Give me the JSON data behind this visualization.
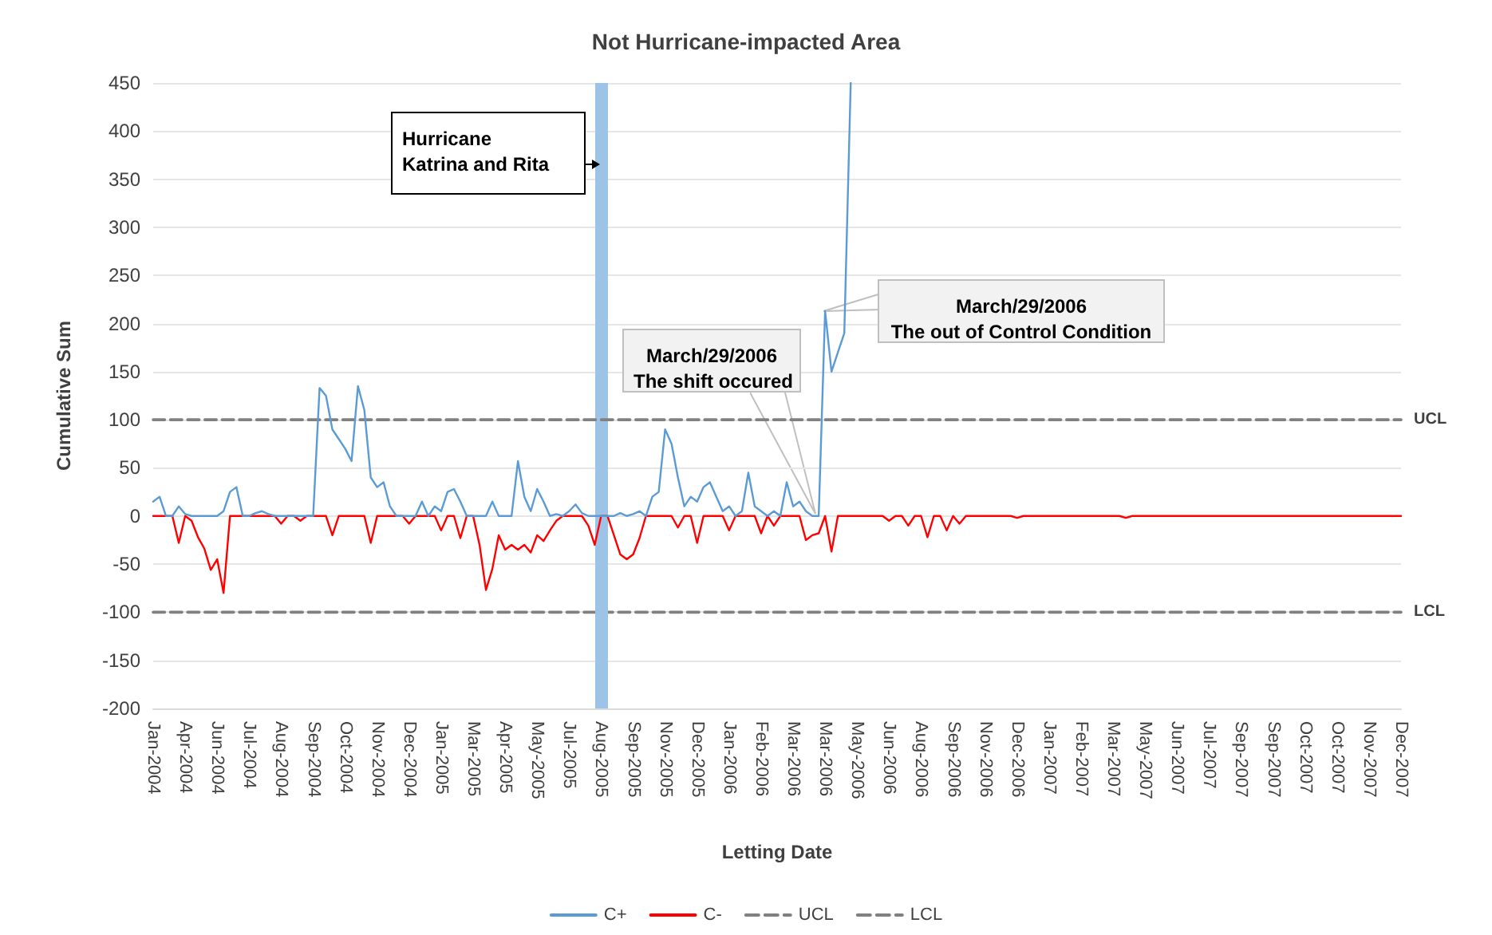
{
  "chart_data": {
    "type": "line",
    "title": "Not Hurricane-impacted Area",
    "xlabel": "Letting Date",
    "ylabel": "Cumulative Sum",
    "categories": [
      "Jan-2004",
      null,
      null,
      null,
      null,
      "Apr-2004",
      null,
      null,
      null,
      null,
      "Jun-2004",
      null,
      null,
      null,
      null,
      "Jul-2004",
      null,
      null,
      null,
      null,
      "Aug-2004",
      null,
      null,
      null,
      null,
      "Sep-2004",
      null,
      null,
      null,
      null,
      "Oct-2004",
      null,
      null,
      null,
      null,
      "Nov-2004",
      null,
      null,
      null,
      null,
      "Dec-2004",
      null,
      null,
      null,
      null,
      "Jan-2005",
      null,
      null,
      null,
      null,
      "Mar-2005",
      null,
      null,
      null,
      null,
      "Apr-2005",
      null,
      null,
      null,
      null,
      "May-2005",
      null,
      null,
      null,
      null,
      "Jul-2005",
      null,
      null,
      null,
      null,
      "Aug-2005",
      null,
      null,
      null,
      null,
      "Sep-2005",
      null,
      null,
      null,
      null,
      "Nov-2005",
      null,
      null,
      null,
      null,
      "Dec-2005",
      null,
      null,
      null,
      null,
      "Jan-2006",
      null,
      null,
      null,
      null,
      "Feb-2006",
      null,
      null,
      null,
      null,
      "Mar-2006",
      null,
      null,
      null,
      null,
      "Mar-2006",
      null,
      null,
      null,
      null,
      "May-2006",
      null,
      null,
      null,
      null,
      "Jun-2006",
      null,
      null,
      null,
      null,
      "Aug-2006",
      null,
      null,
      null,
      null,
      "Sep-2006",
      null,
      null,
      null,
      null,
      "Nov-2006",
      null,
      null,
      null,
      null,
      "Dec-2006",
      null,
      null,
      null,
      null,
      "Jan-2007",
      null,
      null,
      null,
      null,
      "Feb-2007",
      null,
      null,
      null,
      null,
      "Mar-2007",
      null,
      null,
      null,
      null,
      "May-2007",
      null,
      null,
      null,
      null,
      "Jun-2007",
      null,
      null,
      null,
      null,
      "Jul-2007",
      null,
      null,
      null,
      null,
      "Sep-2007",
      null,
      null,
      null,
      null,
      "Sep-2007",
      null,
      null,
      null,
      null,
      "Oct-2007",
      null,
      null,
      null,
      null,
      "Oct-2007",
      null,
      null,
      null,
      null,
      "Nov-2007",
      null,
      null,
      null,
      null,
      "Dec-2007"
    ],
    "series": [
      {
        "name": "C+",
        "color": "#5b9bd5",
        "values": [
          15,
          20,
          0,
          0,
          10,
          2,
          0,
          0,
          0,
          0,
          0,
          5,
          25,
          30,
          0,
          0,
          3,
          5,
          2,
          0,
          0,
          0,
          0,
          0,
          0,
          0,
          133,
          125,
          90,
          80,
          70,
          57,
          135,
          110,
          40,
          30,
          35,
          10,
          0,
          0,
          0,
          0,
          15,
          0,
          10,
          5,
          25,
          28,
          15,
          0,
          0,
          0,
          0,
          15,
          0,
          0,
          0,
          57,
          20,
          5,
          28,
          15,
          0,
          2,
          0,
          5,
          12,
          3,
          0,
          0,
          0,
          0,
          0,
          3,
          0,
          2,
          5,
          0,
          20,
          25,
          90,
          75,
          40,
          10,
          20,
          15,
          30,
          35,
          20,
          5,
          10,
          0,
          5,
          45,
          10,
          5,
          0,
          5,
          0,
          35,
          10,
          15,
          5,
          0,
          0,
          213,
          150,
          170,
          190,
          450,
          null,
          null,
          null,
          null,
          null,
          null,
          null,
          null,
          null,
          null,
          null,
          null,
          null,
          null,
          null,
          null,
          null,
          null,
          null,
          null,
          null,
          null,
          null,
          null,
          null,
          null,
          null,
          null,
          null,
          null,
          null,
          null,
          null,
          null,
          null,
          null,
          null,
          null,
          null,
          null,
          null,
          null,
          null,
          null,
          null,
          null,
          null,
          null,
          null,
          null,
          null,
          null,
          null,
          null,
          null,
          null,
          null,
          null,
          null,
          null,
          null,
          null,
          null,
          null,
          null,
          null,
          null,
          null,
          null,
          null,
          null,
          null,
          null,
          null,
          null,
          null,
          null,
          null,
          null,
          null,
          null,
          null,
          null,
          null,
          null,
          null
        ]
      },
      {
        "name": "C-",
        "color": "#ff0000",
        "values": [
          0,
          0,
          0,
          0,
          -28,
          0,
          -5,
          -22,
          -34,
          -56,
          -45,
          -80,
          0,
          0,
          0,
          0,
          0,
          0,
          0,
          0,
          -8,
          0,
          0,
          -5,
          0,
          0,
          0,
          0,
          -20,
          0,
          0,
          0,
          0,
          0,
          -28,
          0,
          0,
          0,
          0,
          0,
          -8,
          0,
          0,
          0,
          0,
          -15,
          0,
          0,
          -23,
          0,
          0,
          -30,
          -77,
          -55,
          -20,
          -35,
          -30,
          -35,
          -30,
          -38,
          -20,
          -26,
          -15,
          -5,
          0,
          0,
          0,
          0,
          -10,
          -30,
          0,
          0,
          -20,
          -40,
          -45,
          -40,
          -23,
          0,
          0,
          0,
          0,
          0,
          -12,
          0,
          0,
          -28,
          0,
          0,
          0,
          0,
          -15,
          0,
          0,
          0,
          0,
          -18,
          0,
          -10,
          0,
          0,
          0,
          0,
          -25,
          -20,
          -18,
          0,
          -37,
          0,
          0,
          0,
          0,
          0,
          0,
          0,
          0,
          -5,
          0,
          0,
          -10,
          0,
          0,
          -22,
          0,
          0,
          -15,
          0,
          -8,
          0,
          0,
          0,
          0,
          0,
          0,
          0,
          0,
          -2,
          0,
          0,
          0,
          0,
          0,
          0,
          0,
          0,
          0,
          0,
          0,
          0,
          0,
          0,
          0,
          0,
          -2,
          0,
          0,
          0,
          0,
          0,
          0,
          0,
          0,
          0,
          0,
          0,
          0,
          0,
          0,
          0,
          0,
          0,
          0,
          0,
          0,
          0,
          0,
          0,
          0,
          0,
          0,
          0,
          0,
          0,
          0,
          0,
          0,
          0,
          0,
          0,
          0,
          0,
          0,
          0,
          0,
          0,
          0,
          0
        ]
      },
      {
        "name": "UCL",
        "color": "#808080",
        "line_style": "dashed",
        "values": [
          100,
          100,
          100,
          100,
          100,
          100,
          100,
          100,
          100,
          100,
          100,
          100,
          100,
          100,
          100,
          100,
          100,
          100,
          100,
          100,
          100,
          100,
          100,
          100,
          100,
          100,
          100,
          100,
          100,
          100,
          100,
          100,
          100,
          100,
          100,
          100,
          100,
          100,
          100,
          100,
          100,
          100,
          100,
          100,
          100,
          100,
          100,
          100,
          100,
          100,
          100,
          100,
          100,
          100,
          100,
          100,
          100,
          100,
          100,
          100,
          100,
          100,
          100,
          100,
          100,
          100,
          100,
          100,
          100,
          100,
          100,
          100,
          100,
          100,
          100,
          100,
          100,
          100,
          100,
          100,
          100,
          100,
          100,
          100,
          100,
          100,
          100,
          100,
          100,
          100,
          100,
          100,
          100,
          100,
          100,
          100,
          100,
          100,
          100,
          100,
          100,
          100,
          100,
          100,
          100,
          100,
          100,
          100,
          100,
          100,
          100,
          100,
          100,
          100,
          100,
          100,
          100,
          100,
          100,
          100,
          100,
          100,
          100,
          100,
          100,
          100,
          100,
          100,
          100,
          100,
          100,
          100,
          100,
          100,
          100,
          100,
          100,
          100,
          100,
          100,
          100,
          100,
          100,
          100,
          100,
          100,
          100,
          100,
          100,
          100,
          100,
          100,
          100,
          100,
          100,
          100,
          100,
          100,
          100,
          100,
          100,
          100,
          100,
          100,
          100,
          100,
          100,
          100,
          100,
          100,
          100,
          100,
          100,
          100,
          100,
          100,
          100,
          100,
          100,
          100,
          100,
          100,
          100,
          100,
          100,
          100,
          100,
          100,
          100,
          100,
          100,
          100,
          100,
          100,
          100,
          100
        ]
      },
      {
        "name": "LCL",
        "color": "#808080",
        "line_style": "dashed",
        "values": [
          -100,
          -100,
          -100,
          -100,
          -100,
          -100,
          -100,
          -100,
          -100,
          -100,
          -100,
          -100,
          -100,
          -100,
          -100,
          -100,
          -100,
          -100,
          -100,
          -100,
          -100,
          -100,
          -100,
          -100,
          -100,
          -100,
          -100,
          -100,
          -100,
          -100,
          -100,
          -100,
          -100,
          -100,
          -100,
          -100,
          -100,
          -100,
          -100,
          -100,
          -100,
          -100,
          -100,
          -100,
          -100,
          -100,
          -100,
          -100,
          -100,
          -100,
          -100,
          -100,
          -100,
          -100,
          -100,
          -100,
          -100,
          -100,
          -100,
          -100,
          -100,
          -100,
          -100,
          -100,
          -100,
          -100,
          -100,
          -100,
          -100,
          -100,
          -100,
          -100,
          -100,
          -100,
          -100,
          -100,
          -100,
          -100,
          -100,
          -100,
          -100,
          -100,
          -100,
          -100,
          -100,
          -100,
          -100,
          -100,
          -100,
          -100,
          -100,
          -100,
          -100,
          -100,
          -100,
          -100,
          -100,
          -100,
          -100,
          -100,
          -100,
          -100,
          -100,
          -100,
          -100,
          -100,
          -100,
          -100,
          -100,
          -100,
          -100,
          -100,
          -100,
          -100,
          -100,
          -100,
          -100,
          -100,
          -100,
          -100,
          -100,
          -100,
          -100,
          -100,
          -100,
          -100,
          -100,
          -100,
          -100,
          -100,
          -100,
          -100,
          -100,
          -100,
          -100,
          -100,
          -100,
          -100,
          -100,
          -100,
          -100,
          -100,
          -100,
          -100,
          -100,
          -100,
          -100,
          -100,
          -100,
          -100,
          -100,
          -100,
          -100,
          -100,
          -100,
          -100,
          -100,
          -100,
          -100,
          -100,
          -100,
          -100,
          -100,
          -100,
          -100,
          -100,
          -100,
          -100,
          -100,
          -100,
          -100,
          -100,
          -100,
          -100,
          -100,
          -100,
          -100,
          -100,
          -100,
          -100,
          -100,
          -100,
          -100,
          -100,
          -100,
          -100,
          -100,
          -100,
          -100,
          -100,
          -100,
          -100,
          -100,
          -100,
          -100,
          -100
        ]
      }
    ],
    "ylim": [
      -200,
      450
    ],
    "yticks": [
      -200,
      -150,
      -100,
      -50,
      0,
      50,
      100,
      150,
      200,
      250,
      300,
      350,
      400,
      450
    ],
    "grid": "y",
    "legend": "bottom",
    "marker": "none",
    "line_style": "solid",
    "ref_lines": [
      {
        "axis": "x",
        "value": "Aug-2005",
        "color": "#9dc3e6"
      }
    ],
    "annotations": [
      "Hurricane\nKatrina and Rita",
      "March/29/2006\nThe shift occured",
      "March/29/2006\nThe out of Control Condition"
    ]
  }
}
